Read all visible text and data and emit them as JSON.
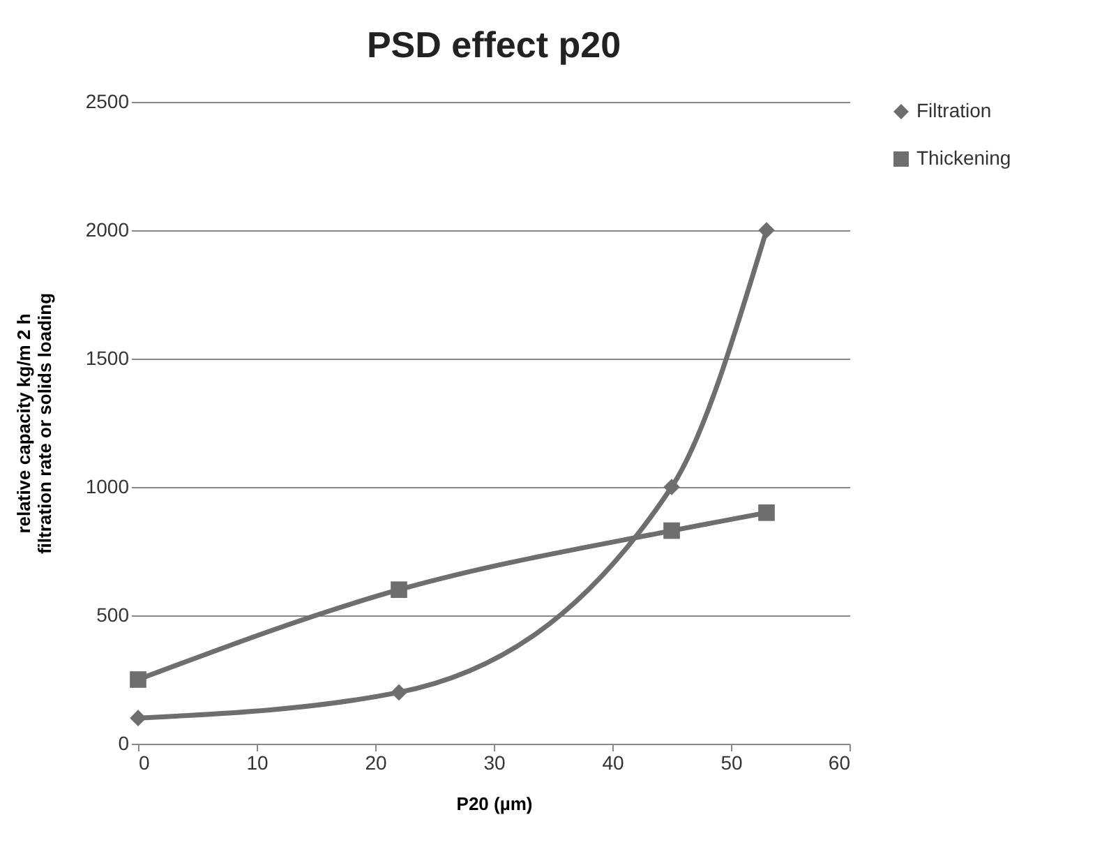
{
  "chart_data": {
    "type": "line",
    "title": "PSD  effect p20",
    "xlabel": "P20 (µm)",
    "ylabel": "relative capacity  kg/m 2 h\nfiltration rate or solids loading",
    "series": [
      {
        "name": "Filtration",
        "color": "#6e6e6e",
        "marker": "diamond",
        "x": [
          0,
          22,
          45,
          53
        ],
        "values": [
          100,
          200,
          1000,
          2000
        ]
      },
      {
        "name": "Thickening",
        "color": "#6e6e6e",
        "marker": "square",
        "x": [
          0,
          22,
          45,
          53
        ],
        "values": [
          250,
          600,
          830,
          900
        ]
      }
    ],
    "xlim": [
      0,
      60
    ],
    "xticks": [
      0,
      10,
      20,
      30,
      40,
      50,
      60
    ],
    "ylim": [
      0,
      2500
    ],
    "yticks": [
      0,
      500,
      1000,
      1500,
      2000,
      2500
    ],
    "grid": "y",
    "legend": "right",
    "line_style": "solid"
  }
}
